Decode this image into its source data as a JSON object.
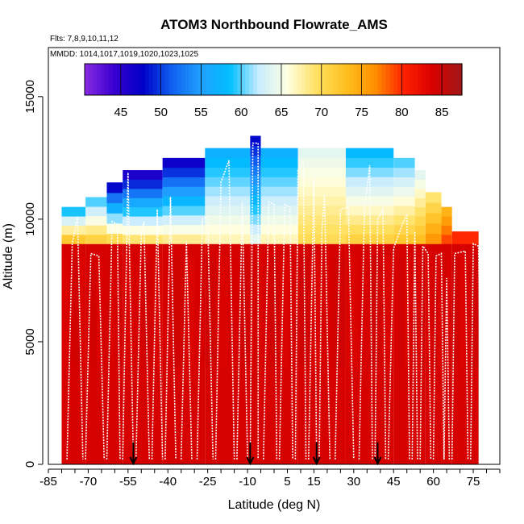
{
  "chart_data": {
    "type": "heatmap",
    "title": "ATOM3 Northbound Flowrate_AMS",
    "flights_text": "Flts: 7,8,9,10,11,12",
    "dates_text": "MMDD: 1014,1017,1019,1020,1023,1025",
    "xlabel": "Latitude (deg N)",
    "ylabel": "Altitude (m)",
    "xlim": [
      -85,
      85
    ],
    "ylim": [
      0,
      17000
    ],
    "x_ticks": [
      "-85",
      "-70",
      "-55",
      "-40",
      "-25",
      "-10",
      "5",
      "15",
      "30",
      "45",
      "60",
      "75"
    ],
    "x_tick_values": [
      -85,
      -70,
      -55,
      -40,
      -25,
      -10,
      5,
      15,
      30,
      45,
      60,
      75
    ],
    "y_ticks": [
      "0",
      "5000",
      "10000",
      "15000"
    ],
    "y_tick_values": [
      0,
      5000,
      10000,
      15000
    ],
    "colorbar": {
      "range": [
        40.5,
        87.5
      ],
      "ticks": [
        "45",
        "50",
        "55",
        "60",
        "65",
        "70",
        "75",
        "80",
        "85"
      ],
      "tick_values": [
        45,
        50,
        55,
        60,
        65,
        70,
        75,
        80,
        85
      ],
      "colors": [
        "#8a2be2",
        "#3a00d0",
        "#0000c8",
        "#1060f0",
        "#20a0ff",
        "#00bfff",
        "#c8ecff",
        "#ffffe0",
        "#ffe060",
        "#ffc020",
        "#ff9000",
        "#ff2000",
        "#d80000",
        "#a01818"
      ]
    },
    "bins": [
      {
        "lat0": -80,
        "lat1": -71,
        "top": 10500,
        "top_value": 59,
        "mid_value": 72
      },
      {
        "lat0": -71,
        "lat1": -63,
        "top": 10900,
        "top_value": 60,
        "mid_value": 71
      },
      {
        "lat0": -63,
        "lat1": -57,
        "top": 11500,
        "top_value": 48,
        "mid_value": 70
      },
      {
        "lat0": -57,
        "lat1": -42,
        "top": 12000,
        "top_value": 46,
        "mid_value": 69
      },
      {
        "lat0": -42,
        "lat1": -26,
        "top": 12500,
        "top_value": 47,
        "mid_value": 68
      },
      {
        "lat0": -26,
        "lat1": -9,
        "top": 12900,
        "top_value": 57,
        "mid_value": 67
      },
      {
        "lat0": -9,
        "lat1": -5,
        "top": 13400,
        "top_value": 48,
        "mid_value": 64
      },
      {
        "lat0": -5,
        "lat1": 9,
        "top": 12900,
        "top_value": 57,
        "mid_value": 67
      },
      {
        "lat0": 9,
        "lat1": 27,
        "top": 12900,
        "top_value": 64,
        "mid_value": 70
      },
      {
        "lat0": 27,
        "lat1": 45,
        "top": 12900,
        "top_value": 58,
        "mid_value": 71
      },
      {
        "lat0": 45,
        "lat1": 53,
        "top": 12500,
        "top_value": 60,
        "mid_value": 72
      },
      {
        "lat0": 53,
        "lat1": 57,
        "top": 12000,
        "top_value": 64,
        "mid_value": 73
      },
      {
        "lat0": 57,
        "lat1": 63,
        "top": 11100,
        "top_value": 69,
        "mid_value": 76
      },
      {
        "lat0": 63,
        "lat1": 67,
        "top": 10500,
        "top_value": 74,
        "mid_value": 79
      },
      {
        "lat0": 67,
        "lat1": 77,
        "top": 9500,
        "top_value": 80,
        "mid_value": 82
      }
    ],
    "base_value": 84,
    "flight_tracks": [
      [
        [
          -78,
          200
        ],
        [
          -76,
          9000
        ],
        [
          -74,
          10100
        ],
        [
          -72,
          200
        ]
      ],
      [
        [
          -71,
          200
        ],
        [
          -69,
          8600
        ],
        [
          -66,
          8500
        ],
        [
          -64,
          200
        ]
      ],
      [
        [
          -63,
          200
        ],
        [
          -61,
          9900
        ],
        [
          -59,
          9800
        ],
        [
          -58,
          200
        ]
      ],
      [
        [
          -57,
          200
        ],
        [
          -55,
          11900
        ],
        [
          -53,
          200
        ]
      ],
      [
        [
          -52,
          200
        ],
        [
          -50,
          9500
        ],
        [
          -49,
          9900
        ],
        [
          -47,
          200
        ]
      ],
      [
        [
          -46,
          200
        ],
        [
          -44,
          10400
        ],
        [
          -42,
          200
        ]
      ],
      [
        [
          -41,
          200
        ],
        [
          -39,
          10900
        ],
        [
          -37,
          200
        ]
      ],
      [
        [
          -35,
          200
        ],
        [
          -33,
          9100
        ],
        [
          -31,
          200
        ]
      ],
      [
        [
          -29,
          200
        ],
        [
          -27,
          10000
        ],
        [
          -25,
          10100
        ],
        [
          -23,
          200
        ]
      ],
      [
        [
          -22,
          200
        ],
        [
          -20,
          11500
        ],
        [
          -17,
          12400
        ],
        [
          -15,
          200
        ]
      ],
      [
        [
          -14,
          200
        ],
        [
          -12,
          10700
        ],
        [
          -10,
          200
        ]
      ],
      [
        [
          -9,
          200
        ],
        [
          -8,
          13100
        ],
        [
          -6,
          13100
        ],
        [
          -6,
          200
        ]
      ],
      [
        [
          -4,
          200
        ],
        [
          -2,
          10700
        ],
        [
          0,
          10600
        ],
        [
          1,
          200
        ]
      ],
      [
        [
          2,
          200
        ],
        [
          4,
          10600
        ],
        [
          6,
          10500
        ],
        [
          7,
          200
        ]
      ],
      [
        [
          8,
          200
        ],
        [
          9,
          12000
        ],
        [
          11,
          12400
        ],
        [
          12,
          200
        ]
      ],
      [
        [
          13,
          200
        ],
        [
          15,
          11700
        ],
        [
          16,
          200
        ]
      ],
      [
        [
          17,
          200
        ],
        [
          18,
          9500
        ],
        [
          19,
          11000
        ],
        [
          21,
          200
        ]
      ],
      [
        [
          23,
          200
        ],
        [
          25,
          10400
        ],
        [
          28,
          10500
        ],
        [
          30,
          200
        ]
      ],
      [
        [
          32,
          200
        ],
        [
          34,
          10300
        ],
        [
          36,
          12200
        ],
        [
          37,
          200
        ]
      ],
      [
        [
          38,
          200
        ],
        [
          39,
          10000
        ],
        [
          41,
          10400
        ],
        [
          42,
          200
        ]
      ],
      [
        [
          43,
          200
        ],
        [
          45,
          8800
        ],
        [
          48,
          9700
        ],
        [
          50,
          10200
        ],
        [
          51,
          200
        ]
      ],
      [
        [
          52,
          200
        ],
        [
          53,
          9500
        ],
        [
          54,
          200
        ]
      ],
      [
        [
          55,
          200
        ],
        [
          56,
          8900
        ],
        [
          58,
          8600
        ],
        [
          59,
          200
        ]
      ],
      [
        [
          60,
          200
        ],
        [
          61,
          8500
        ],
        [
          63,
          8600
        ],
        [
          64,
          200
        ]
      ],
      [
        [
          64,
          200
        ],
        [
          65,
          7600
        ],
        [
          66,
          200
        ]
      ],
      [
        [
          67,
          200
        ],
        [
          68,
          8600
        ],
        [
          72,
          8700
        ],
        [
          73,
          200
        ]
      ],
      [
        [
          74,
          200
        ],
        [
          75,
          9000
        ],
        [
          77,
          8900
        ],
        [
          78,
          200
        ]
      ]
    ],
    "arrow_latitudes": [
      -53,
      -9,
      16,
      39
    ]
  }
}
